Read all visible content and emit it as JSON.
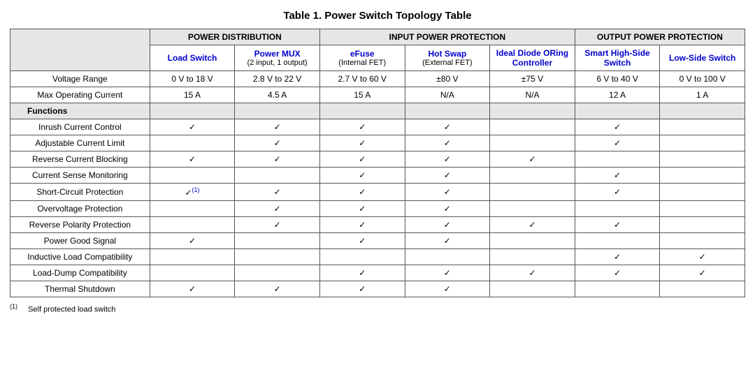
{
  "title": "Table 1. Power Switch Topology Table",
  "colors": {
    "link": "#0000cc",
    "header_bg": "#e6e6e6",
    "border": "#555555"
  },
  "groups": [
    {
      "label": "POWER DISTRIBUTION",
      "span": 2
    },
    {
      "label": "INPUT POWER PROTECTION",
      "span": 3
    },
    {
      "label": "OUTPUT POWER PROTECTION",
      "span": 2
    }
  ],
  "columns": [
    {
      "main": "Load Switch",
      "sub": ""
    },
    {
      "main": "Power MUX",
      "sub": "(2 input, 1 output)"
    },
    {
      "main": "eFuse",
      "sub": "(Internal FET)"
    },
    {
      "main": "Hot Swap",
      "sub": "(External FET)"
    },
    {
      "main": "Ideal Diode ORing Controller",
      "sub": ""
    },
    {
      "main": "Smart High-Side Switch",
      "sub": ""
    },
    {
      "main": "Low-Side Switch",
      "sub": ""
    }
  ],
  "spec_rows": [
    {
      "label": "Voltage Range",
      "cells": [
        "0 V to 18 V",
        "2.8 V to 22 V",
        "2.7 V to 60 V",
        "±80 V",
        "±75 V",
        "6 V to 40 V",
        "0 V to 100 V"
      ]
    },
    {
      "label": "Max Operating Current",
      "cells": [
        "15 A",
        "4.5 A",
        "15 A",
        "N/A",
        "N/A",
        "12 A",
        "1 A"
      ]
    }
  ],
  "section_label": "Functions",
  "check": "✓",
  "function_rows": [
    {
      "label": "Inrush Current Control",
      "cells": [
        "c",
        "c",
        "c",
        "c",
        "",
        "c",
        ""
      ]
    },
    {
      "label": "Adjustable Current Limit",
      "cells": [
        "",
        "c",
        "c",
        "c",
        "",
        "c",
        ""
      ]
    },
    {
      "label": "Reverse Current Blocking",
      "cells": [
        "c",
        "c",
        "c",
        "c",
        "c",
        "",
        ""
      ]
    },
    {
      "label": "Current Sense Monitoring",
      "cells": [
        "",
        "",
        "c",
        "c",
        "",
        "c",
        ""
      ]
    },
    {
      "label": "Short-Circuit Protection",
      "cells": [
        "c1",
        "c",
        "c",
        "c",
        "",
        "c",
        ""
      ]
    },
    {
      "label": "Overvoltage Protection",
      "cells": [
        "",
        "c",
        "c",
        "c",
        "",
        "",
        ""
      ]
    },
    {
      "label": "Reverse Polarity Protection",
      "cells": [
        "",
        "c",
        "c",
        "c",
        "c",
        "c",
        ""
      ]
    },
    {
      "label": "Power Good Signal",
      "cells": [
        "c",
        "",
        "c",
        "c",
        "",
        "",
        ""
      ]
    },
    {
      "label": "Inductive Load Compatibility",
      "cells": [
        "",
        "",
        "",
        "",
        "",
        "c",
        "c"
      ]
    },
    {
      "label": "Load-Dump Compatibility",
      "cells": [
        "",
        "",
        "c",
        "c",
        "c",
        "c",
        "c"
      ]
    },
    {
      "label": "Thermal Shutdown",
      "cells": [
        "c",
        "c",
        "c",
        "c",
        "",
        "",
        ""
      ]
    }
  ],
  "footnote": {
    "marker": "(1)",
    "text": "Self protected load switch"
  }
}
